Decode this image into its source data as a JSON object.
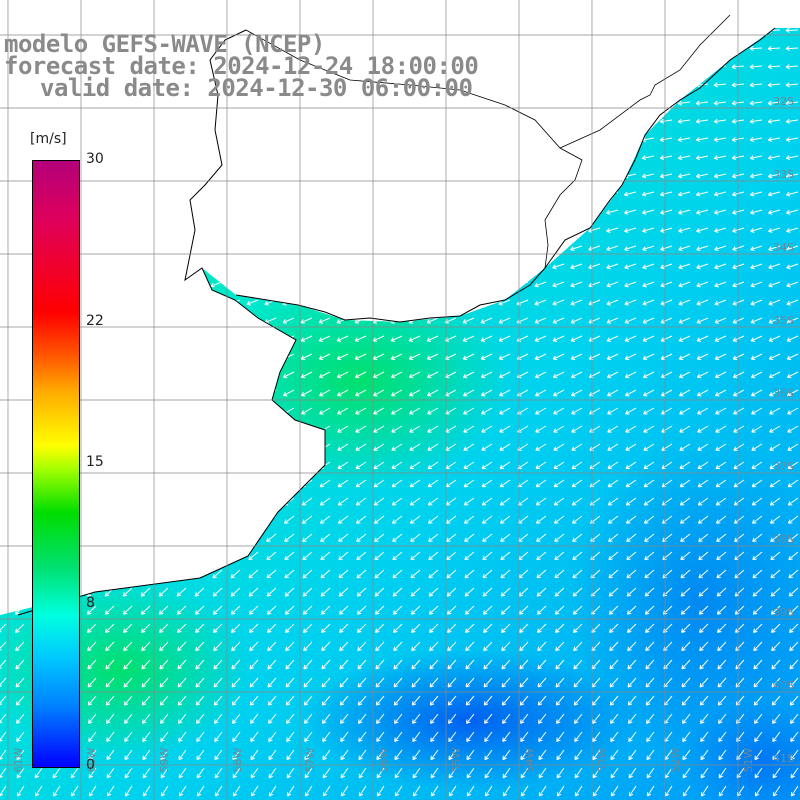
{
  "title": {
    "line1": "modelo GEFS-WAVE (NCEP)",
    "line2": "forecast date: 2024-12-24 18:00:00",
    "line3": "valid date: 2024-12-30 06:00:00"
  },
  "colorbar": {
    "units": "[m/s]",
    "ticks": [
      {
        "value": 30,
        "label": "30"
      },
      {
        "value": 22,
        "label": "22"
      },
      {
        "value": 15,
        "label": "15"
      },
      {
        "value": 8,
        "label": "8"
      },
      {
        "value": 0,
        "label": "0"
      }
    ],
    "colors": [
      "#0000ff",
      "#0080ff",
      "#00c8ff",
      "#00ffe0",
      "#00e070",
      "#00dd00",
      "#a0ff00",
      "#ffff00",
      "#ffaa00",
      "#ff5500",
      "#ff0000",
      "#e0005a",
      "#b4007a"
    ]
  },
  "lat_labels": [
    "32S",
    "33S",
    "34S",
    "35S",
    "36S",
    "37S",
    "38S",
    "39S",
    "40S",
    "41S"
  ],
  "lon_labels": [
    "61W",
    "60W",
    "59W",
    "58W",
    "57W",
    "56W",
    "55W",
    "54W",
    "53W",
    "52W",
    "51W"
  ],
  "field_colors": {
    "land": "#ffffff",
    "coast": "#000000",
    "grid": "#888888",
    "arrows": "#ffffff"
  },
  "wind_direction": "from northeast"
}
